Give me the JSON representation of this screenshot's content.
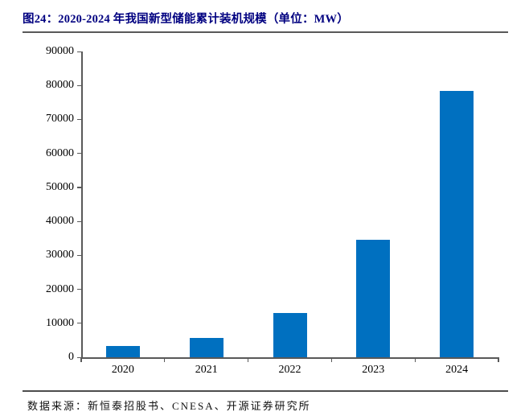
{
  "header": {
    "title": "图24：2020-2024 年我国新型储能累计装机规模（单位：MW）",
    "title_color": "#000080"
  },
  "footer": {
    "source": "数据来源：新恒泰招股书、CNESA、开源证券研究所"
  },
  "colors": {
    "bar": "#0070C0",
    "axis": "#595959",
    "title": "#000080",
    "text": "#000000"
  },
  "chart_data": {
    "type": "bar",
    "categories": [
      "2020",
      "2021",
      "2022",
      "2023",
      "2024"
    ],
    "values": [
      3280,
      5730,
      13100,
      34500,
      78300
    ],
    "title": "图24：2020-2024 年我国新型储能累计装机规模（单位：MW）",
    "xlabel": "",
    "ylabel": "",
    "unit": "MW",
    "ylim": [
      0,
      90000
    ],
    "ytick_step": 10000,
    "yticks": [
      0,
      10000,
      20000,
      30000,
      40000,
      50000,
      60000,
      70000,
      80000,
      90000
    ],
    "bar_color": "#0070C0",
    "grid": false,
    "legend": "none"
  }
}
